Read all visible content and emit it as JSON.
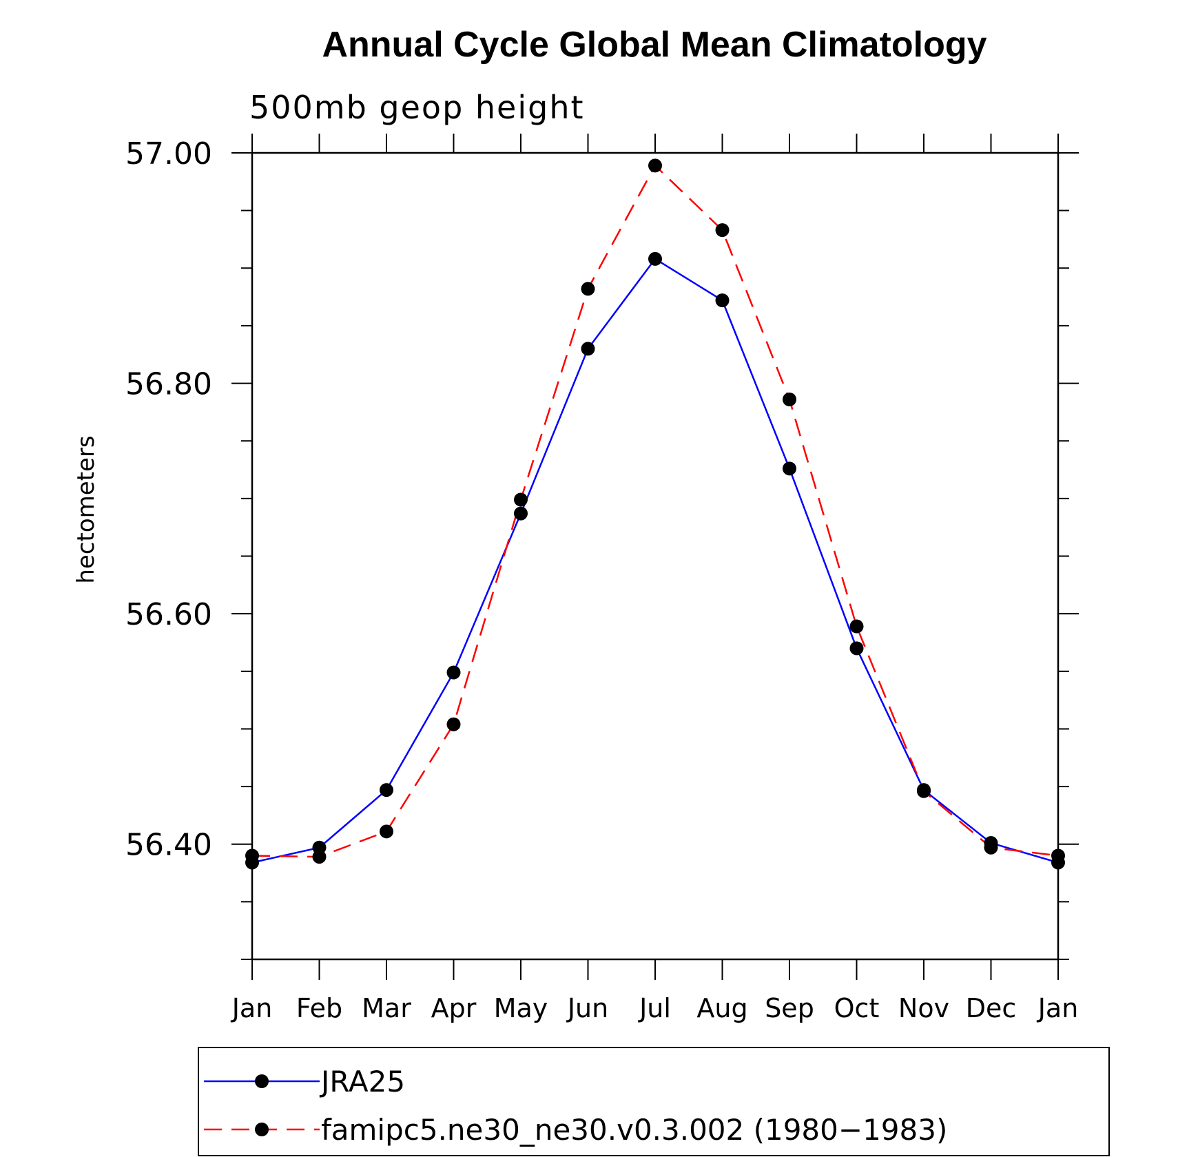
{
  "chart_data": {
    "type": "line",
    "title": "Annual Cycle Global Mean Climatology",
    "subtitle": "500mb geop height",
    "xlabel": "",
    "ylabel": "hectometers",
    "categories": [
      "Jan",
      "Feb",
      "Mar",
      "Apr",
      "May",
      "Jun",
      "Jul",
      "Aug",
      "Sep",
      "Oct",
      "Nov",
      "Dec",
      "Jan"
    ],
    "ylim": [
      56.3,
      57.0
    ],
    "yticks": [
      "56.40",
      "56.60",
      "56.80",
      "57.00"
    ],
    "ytick_values": [
      56.4,
      56.6,
      56.8,
      57.0
    ],
    "grid": false,
    "legend_placement": "bottom",
    "series": [
      {
        "name": "JRA25",
        "color": "#0000ff",
        "dash": "solid",
        "marker": "filled-circle",
        "values": [
          56.384,
          56.397,
          56.447,
          56.549,
          56.687,
          56.83,
          56.908,
          56.872,
          56.726,
          56.57,
          56.447,
          56.401,
          56.384
        ]
      },
      {
        "name": "famipc5.ne30_ne30.v0.3.002 (1980−1983)",
        "color": "#ff0000",
        "dash": "dashed",
        "marker": "filled-circle",
        "values": [
          56.39,
          56.389,
          56.411,
          56.504,
          56.699,
          56.882,
          56.989,
          56.933,
          56.786,
          56.589,
          56.446,
          56.397,
          56.39
        ]
      }
    ]
  }
}
